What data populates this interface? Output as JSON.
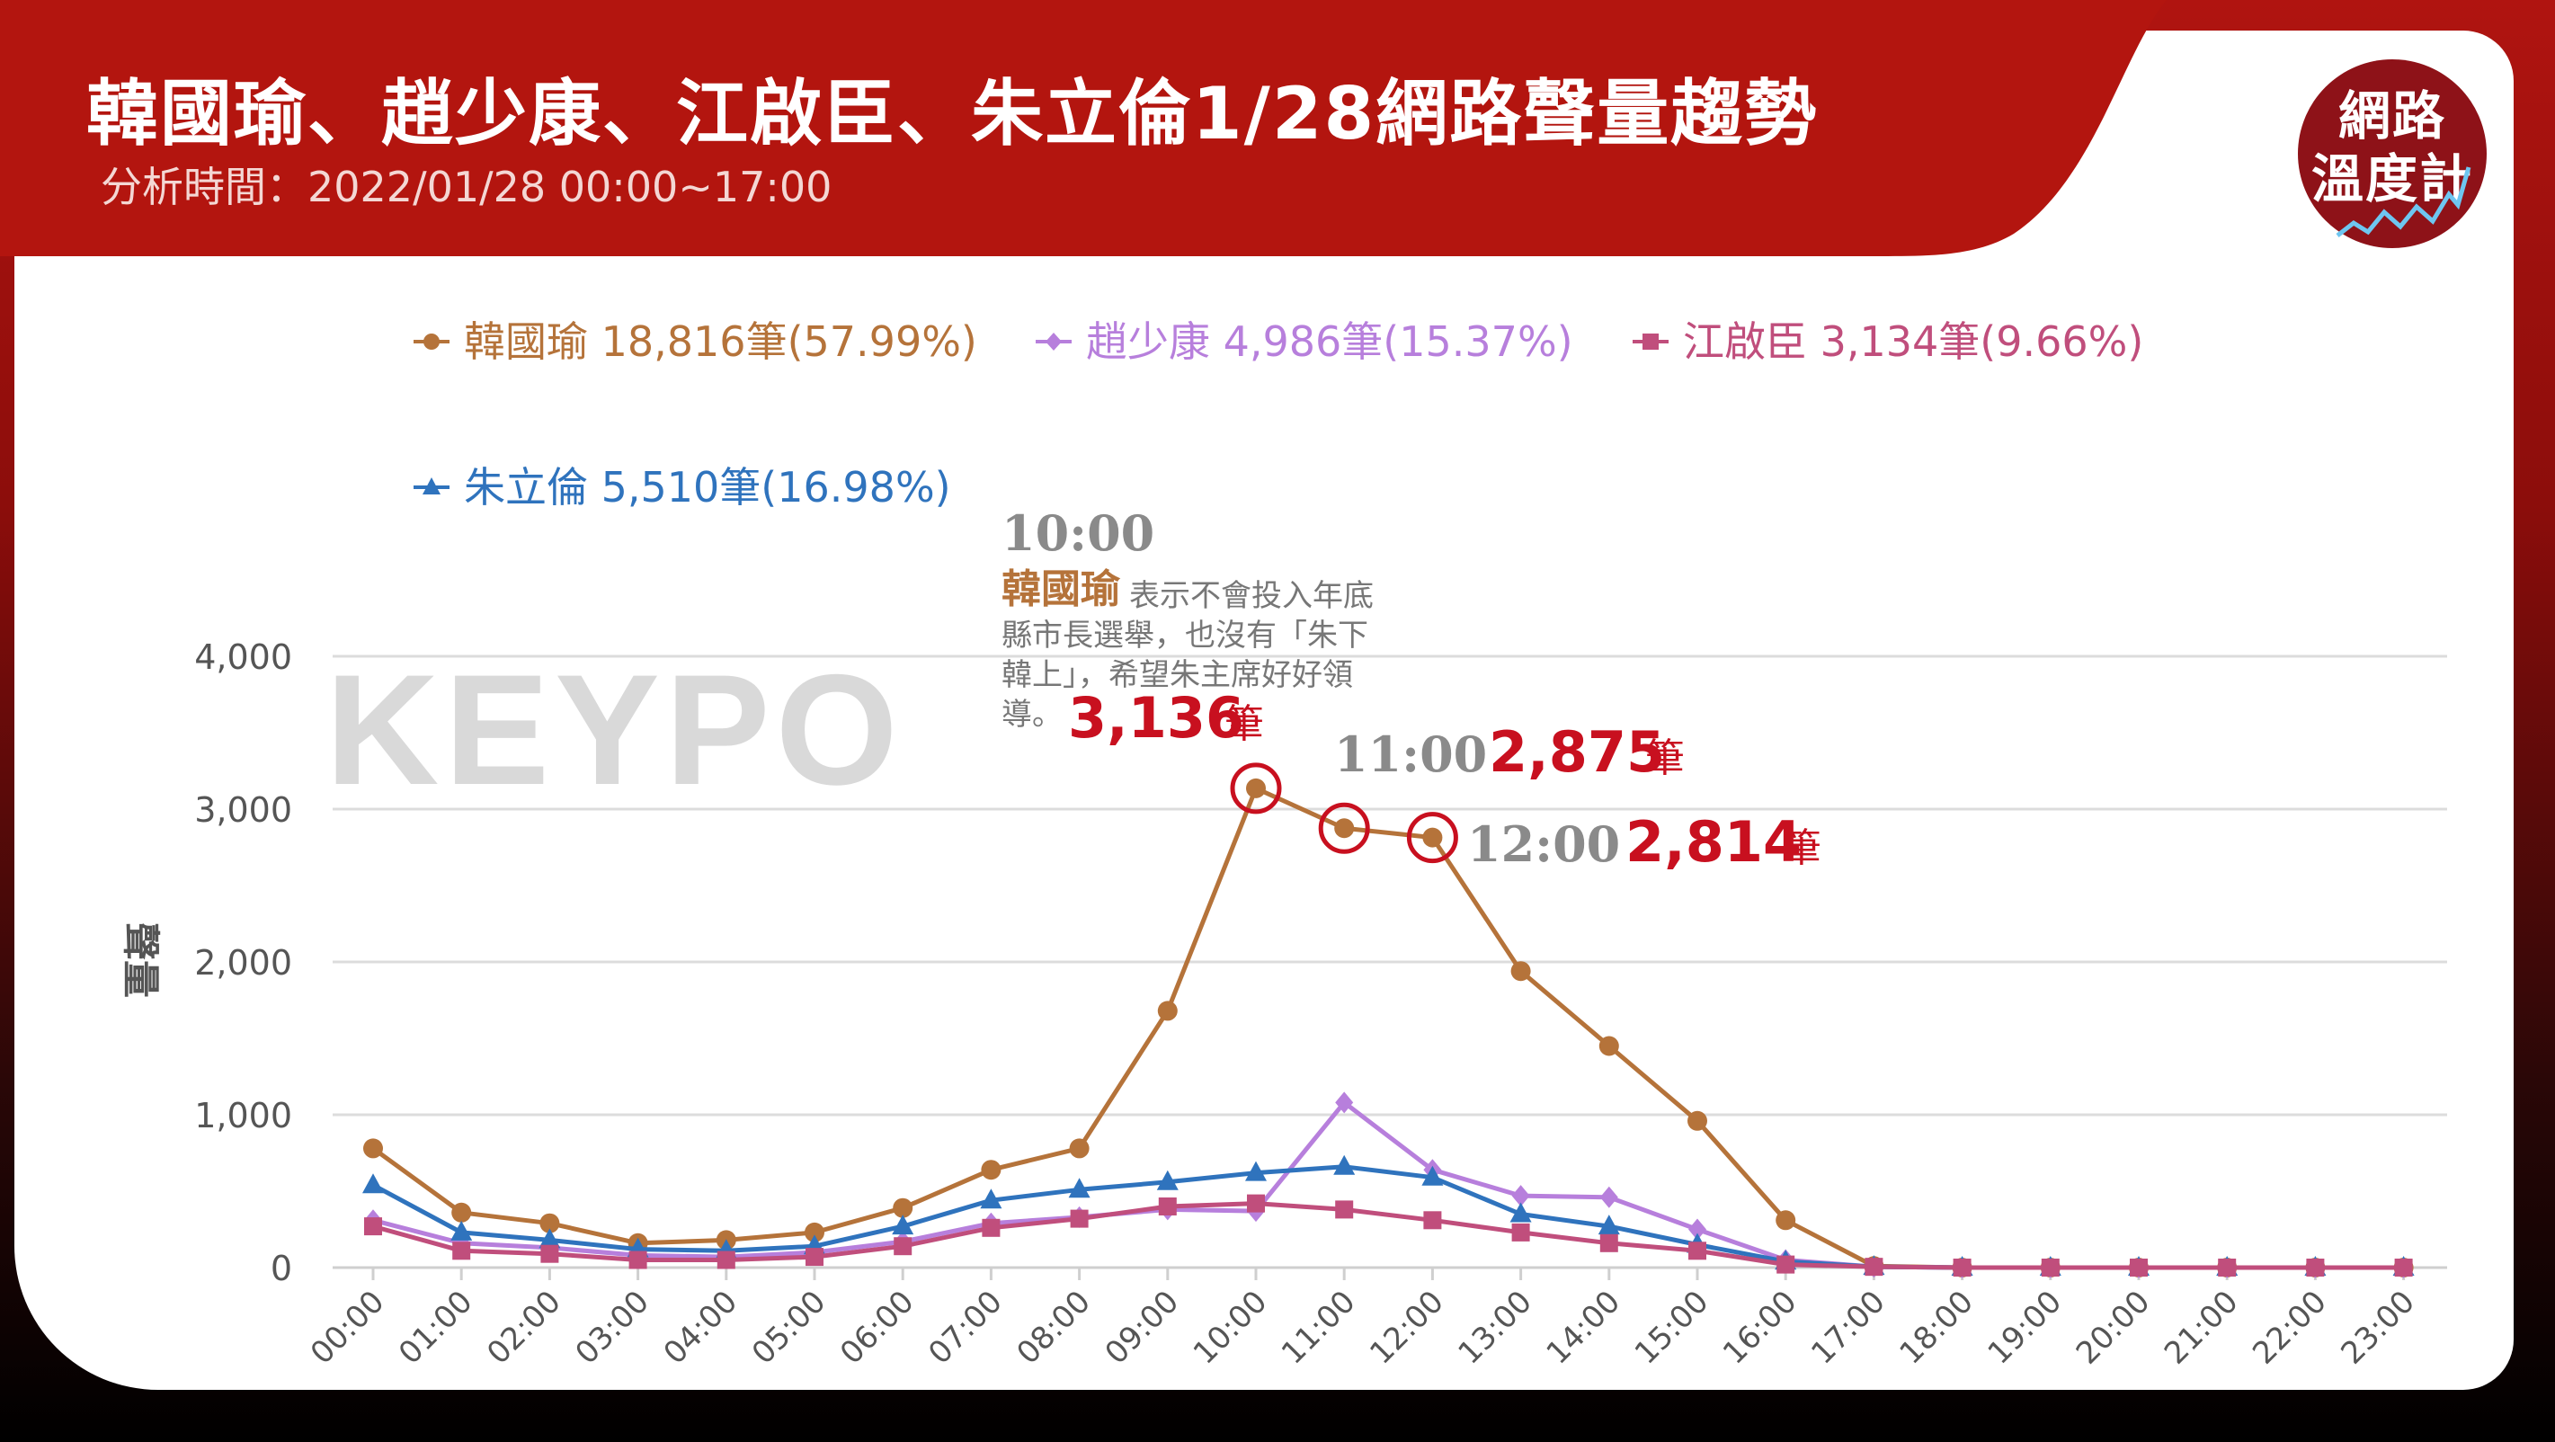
{
  "header": {
    "title": "韓國瑜、趙少康、江啟臣、朱立倫1/28網路聲量趨勢",
    "subtitle": "分析時間：2022/01/28 00:00~17:00"
  },
  "badge": {
    "line1": "網路",
    "line2": "溫度計"
  },
  "watermark": "KEYPO",
  "colors": {
    "banner": "#b3150f",
    "grid": "#dcdcdc",
    "highlight": "#c8101f"
  },
  "chart_data": {
    "type": "line",
    "title": "",
    "xlabel": "",
    "ylabel": "聲量",
    "ylim": [
      0,
      4000
    ],
    "yticks": [
      "0",
      "1,000",
      "2,000",
      "3,000",
      "4,000"
    ],
    "grid": true,
    "legend_position": "top",
    "categories": [
      "00:00",
      "01:00",
      "02:00",
      "03:00",
      "04:00",
      "05:00",
      "06:00",
      "07:00",
      "08:00",
      "09:00",
      "10:00",
      "11:00",
      "12:00",
      "13:00",
      "14:00",
      "15:00",
      "16:00",
      "17:00",
      "18:00",
      "19:00",
      "20:00",
      "21:00",
      "22:00",
      "23:00"
    ],
    "series": [
      {
        "name": "韓國瑜",
        "legend_label": "韓國瑜 18,816筆(57.99%)",
        "color": "#b5733a",
        "marker": "circle",
        "values": [
          780,
          360,
          290,
          160,
          180,
          230,
          390,
          640,
          780,
          1680,
          3136,
          2875,
          2814,
          1940,
          1450,
          960,
          310,
          10,
          0,
          0,
          0,
          0,
          0,
          0
        ]
      },
      {
        "name": "趙少康",
        "legend_label": "趙少康 4,986筆(15.37%)",
        "color": "#b77fdc",
        "marker": "diamond",
        "values": [
          310,
          160,
          130,
          80,
          70,
          100,
          170,
          290,
          330,
          380,
          370,
          1080,
          640,
          470,
          460,
          250,
          50,
          5,
          0,
          0,
          0,
          0,
          0,
          0
        ]
      },
      {
        "name": "江啟臣",
        "legend_label": "江啟臣 3,134筆(9.66%)",
        "color": "#c04e7c",
        "marker": "square",
        "values": [
          270,
          110,
          90,
          50,
          50,
          70,
          140,
          260,
          320,
          400,
          420,
          380,
          310,
          230,
          160,
          110,
          20,
          5,
          0,
          0,
          0,
          0,
          0,
          0
        ]
      },
      {
        "name": "朱立倫",
        "legend_label": "朱立倫 5,510筆(16.98%)",
        "color": "#2f73bd",
        "marker": "triangle",
        "values": [
          540,
          230,
          180,
          120,
          110,
          140,
          270,
          440,
          510,
          560,
          620,
          660,
          590,
          350,
          270,
          150,
          40,
          5,
          0,
          0,
          0,
          0,
          0,
          0
        ]
      }
    ],
    "annotations": [
      {
        "time": "10:00",
        "name": "韓國瑜",
        "desc_lines": [
          "表示不會投入年底",
          "縣市長選舉，也沒有「朱下",
          "韓上」，希望朱主席好好領",
          "導。"
        ],
        "count": "3,136",
        "unit": "筆"
      },
      {
        "time": "11:00",
        "count": "2,875",
        "unit": "筆"
      },
      {
        "time": "12:00",
        "count": "2,814",
        "unit": "筆"
      }
    ]
  }
}
